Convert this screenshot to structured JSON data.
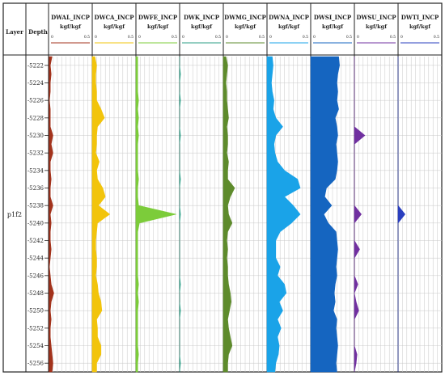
{
  "chart_data": {
    "type": "area",
    "layer_header": "Layer",
    "depth_header": "Depth",
    "layer_name": "p1f2",
    "depth_range": [
      5221,
      5257
    ],
    "depth_ticks": [
      5222,
      5224,
      5226,
      5228,
      5230,
      5232,
      5234,
      5236,
      5238,
      5240,
      5242,
      5244,
      5246,
      5248,
      5250,
      5252,
      5254,
      5256
    ],
    "depth": [
      5221,
      5222,
      5223,
      5224,
      5225,
      5226,
      5227,
      5228,
      5229,
      5230,
      5231,
      5232,
      5233,
      5234,
      5235,
      5236,
      5237,
      5238,
      5239,
      5240,
      5241,
      5242,
      5243,
      5244,
      5245,
      5246,
      5247,
      5248,
      5249,
      5250,
      5251,
      5252,
      5253,
      5254,
      5255,
      5256,
      5257
    ],
    "tracks": [
      {
        "name": "DWAL_INCP",
        "unit": "kgf/kgf",
        "scale_min": "0",
        "scale_max": "0.5",
        "xlim": [
          0,
          0.5
        ],
        "color": "#a3331c",
        "values": [
          0.04,
          0.02,
          0.03,
          0.02,
          0.02,
          0.01,
          0.02,
          0.02,
          0.02,
          0.05,
          0.03,
          0.05,
          0.02,
          0.02,
          0.03,
          0.02,
          0.02,
          0.05,
          0.02,
          0.03,
          0.02,
          0.02,
          0.03,
          0.02,
          0.01,
          0.02,
          0.03,
          0.06,
          0.03,
          0.02,
          0.03,
          0.02,
          0.02,
          0.03,
          0.04,
          0.05,
          0.04
        ]
      },
      {
        "name": "DWCA_INCP",
        "unit": "kgf/kgf",
        "scale_min": "0",
        "scale_max": "0.5",
        "xlim": [
          0,
          0.5
        ],
        "color": "#f2c40c",
        "values": [
          0.03,
          0.05,
          0.04,
          0.04,
          0.05,
          0.05,
          0.1,
          0.14,
          0.06,
          0.05,
          0.05,
          0.04,
          0.08,
          0.05,
          0.06,
          0.12,
          0.15,
          0.07,
          0.2,
          0.06,
          0.05,
          0.04,
          0.04,
          0.05,
          0.05,
          0.04,
          0.06,
          0.07,
          0.1,
          0.11,
          0.05,
          0.06,
          0.06,
          0.1,
          0.1,
          0.05,
          0.05
        ]
      },
      {
        "name": "DWFE_INCP",
        "unit": "kgf/kgf",
        "scale_min": "0",
        "scale_max": "0.5",
        "xlim": [
          0,
          0.5
        ],
        "color": "#7ccc3a",
        "values": [
          0.02,
          0.02,
          0.02,
          0.02,
          0.02,
          0.03,
          0.02,
          0.03,
          0.02,
          0.03,
          0.02,
          0.02,
          0.02,
          0.02,
          0.03,
          0.02,
          0.02,
          0.03,
          0.46,
          0.04,
          0.02,
          0.02,
          0.02,
          0.02,
          0.02,
          0.02,
          0.03,
          0.02,
          0.03,
          0.02,
          0.02,
          0.02,
          0.02,
          0.02,
          0.03,
          0.02,
          0.02
        ]
      },
      {
        "name": "DWK_INCP",
        "unit": "kgf/kgf",
        "scale_min": "0",
        "scale_max": "0.5",
        "xlim": [
          0,
          0.5
        ],
        "color": "#2b9e86",
        "values": [
          0.0,
          0.0,
          0.01,
          0.0,
          0.0,
          0.01,
          0.0,
          0.0,
          0.0,
          0.01,
          0.0,
          0.0,
          0.0,
          0.0,
          0.01,
          0.0,
          0.0,
          0.0,
          0.01,
          0.0,
          0.0,
          0.0,
          0.0,
          0.0,
          0.0,
          0.0,
          0.01,
          0.0,
          0.0,
          0.01,
          0.0,
          0.0,
          0.0,
          0.0,
          0.0,
          0.01,
          0.0
        ]
      },
      {
        "name": "DWMG_INCP",
        "unit": "kgf/kgf",
        "scale_min": "0",
        "scale_max": "0.5",
        "xlim": [
          0,
          0.5
        ],
        "color": "#5e8b2c",
        "values": [
          0.03,
          0.05,
          0.04,
          0.03,
          0.04,
          0.04,
          0.05,
          0.06,
          0.04,
          0.05,
          0.05,
          0.04,
          0.06,
          0.05,
          0.05,
          0.13,
          0.08,
          0.05,
          0.06,
          0.1,
          0.05,
          0.04,
          0.05,
          0.04,
          0.05,
          0.05,
          0.06,
          0.08,
          0.09,
          0.07,
          0.05,
          0.06,
          0.08,
          0.1,
          0.06,
          0.05,
          0.05
        ]
      },
      {
        "name": "DWNA_INCP",
        "unit": "kgf/kgf",
        "scale_min": "0",
        "scale_max": "0.5",
        "xlim": [
          0,
          0.5
        ],
        "color": "#1aa3e8",
        "values": [
          0.06,
          0.07,
          0.06,
          0.05,
          0.06,
          0.08,
          0.07,
          0.1,
          0.18,
          0.1,
          0.08,
          0.09,
          0.12,
          0.2,
          0.35,
          0.38,
          0.2,
          0.3,
          0.38,
          0.28,
          0.15,
          0.1,
          0.1,
          0.1,
          0.15,
          0.12,
          0.2,
          0.22,
          0.14,
          0.18,
          0.12,
          0.16,
          0.12,
          0.14,
          0.13,
          0.1,
          0.09
        ]
      },
      {
        "name": "DWSI_INCP",
        "unit": "kgf/kgf",
        "scale_min": "0",
        "scale_max": "0.5",
        "xlim": [
          0,
          0.5
        ],
        "color": "#1565c0",
        "values": [
          0.32,
          0.33,
          0.31,
          0.3,
          0.31,
          0.3,
          0.32,
          0.28,
          0.3,
          0.31,
          0.29,
          0.3,
          0.31,
          0.3,
          0.28,
          0.18,
          0.16,
          0.24,
          0.15,
          0.2,
          0.29,
          0.3,
          0.31,
          0.3,
          0.29,
          0.3,
          0.28,
          0.27,
          0.28,
          0.26,
          0.3,
          0.29,
          0.3,
          0.31,
          0.3,
          0.29,
          0.3
        ]
      },
      {
        "name": "DWSU_INCP",
        "unit": "kgf/kgf",
        "scale_min": "0",
        "scale_max": "0.5",
        "xlim": [
          0,
          0.5
        ],
        "color": "#7030a0",
        "values": [
          0.0,
          0.0,
          0.0,
          0.0,
          0.0,
          0.0,
          0.0,
          0.0,
          0.0,
          0.12,
          0.0,
          0.0,
          0.0,
          0.0,
          0.0,
          0.0,
          0.0,
          0.0,
          0.08,
          0.0,
          0.0,
          0.0,
          0.06,
          0.0,
          0.0,
          0.0,
          0.04,
          0.0,
          0.02,
          0.05,
          0.0,
          0.0,
          0.0,
          0.0,
          0.03,
          0.02,
          0.0
        ]
      },
      {
        "name": "DWTI_INCP",
        "unit": "kgf/kgf",
        "scale_min": "0",
        "scale_max": "0.5",
        "xlim": [
          0,
          0.5
        ],
        "color": "#2a3fbf",
        "values": [
          0.0,
          0.0,
          0.0,
          0.0,
          0.0,
          0.0,
          0.0,
          0.0,
          0.0,
          0.0,
          0.0,
          0.0,
          0.0,
          0.0,
          0.0,
          0.0,
          0.0,
          0.0,
          0.08,
          0.0,
          0.0,
          0.0,
          0.0,
          0.0,
          0.0,
          0.0,
          0.0,
          0.0,
          0.0,
          0.0,
          0.0,
          0.0,
          0.0,
          0.0,
          0.0,
          0.0,
          0.0
        ]
      }
    ]
  }
}
